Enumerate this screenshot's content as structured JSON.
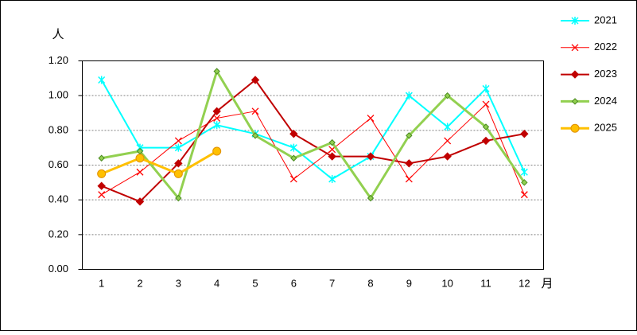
{
  "chart_data": {
    "type": "line",
    "y_label": "人",
    "x_label": "月",
    "categories": [
      "1",
      "2",
      "3",
      "4",
      "5",
      "6",
      "7",
      "8",
      "9",
      "10",
      "11",
      "12"
    ],
    "ylim": [
      0,
      1.2
    ],
    "yticks": [
      {
        "value": 0,
        "label": "0.00"
      },
      {
        "value": 0.2,
        "label": "0.20"
      },
      {
        "value": 0.4,
        "label": "0.40"
      },
      {
        "value": 0.6,
        "label": "0.60"
      },
      {
        "value": 0.8,
        "label": "0.80"
      },
      {
        "value": 1.0,
        "label": "1.00"
      },
      {
        "value": 1.2,
        "label": "1.20"
      }
    ],
    "grid": true,
    "legend": "right",
    "series": [
      {
        "name": "2021",
        "color": "#00ffff",
        "marker": "asterisk",
        "line_width": 2,
        "values": [
          1.09,
          0.7,
          0.7,
          0.83,
          0.78,
          0.7,
          0.52,
          0.65,
          1.0,
          0.82,
          1.04,
          0.56
        ]
      },
      {
        "name": "2022",
        "color": "#ff0000",
        "marker": "x",
        "line_width": 1,
        "values": [
          0.43,
          0.56,
          0.74,
          0.87,
          0.91,
          0.52,
          0.69,
          0.87,
          0.52,
          0.74,
          0.95,
          0.43
        ]
      },
      {
        "name": "2023",
        "color": "#c00000",
        "marker": "diamond",
        "line_width": 2,
        "values": [
          0.48,
          0.39,
          0.61,
          0.91,
          1.09,
          0.78,
          0.65,
          0.65,
          0.61,
          0.65,
          0.74,
          0.78
        ]
      },
      {
        "name": "2024",
        "color": "#92d050",
        "marker": "diamond",
        "line_width": 3,
        "values": [
          0.64,
          0.68,
          0.41,
          1.14,
          0.77,
          0.64,
          0.73,
          0.41,
          0.77,
          1.0,
          0.82,
          0.5
        ]
      },
      {
        "name": "2025",
        "color": "#ffc000",
        "marker": "circle",
        "line_width": 3,
        "values": [
          0.55,
          0.64,
          0.55,
          0.68,
          null,
          null,
          null,
          null,
          null,
          null,
          null,
          null
        ]
      }
    ]
  }
}
